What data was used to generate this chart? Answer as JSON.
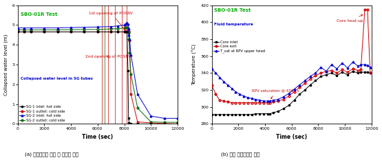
{
  "fig_width": 5.55,
  "fig_height": 2.33,
  "dpi": 100,
  "caption_a": "(a) 증기발생기 튜브 내 수위의 변화",
  "caption_b": "(b) 계통 유체온도의 변화",
  "plot_a": {
    "title": "SBO-01R Test",
    "title_color": "#00aa00",
    "xlabel": "Time (sec)",
    "ylabel": "Collapsed water level (m)",
    "xlim": [
      0,
      12000
    ],
    "ylim": [
      0,
      6
    ],
    "yticks": [
      0,
      1,
      2,
      3,
      4,
      5,
      6
    ],
    "xticks": [
      0,
      2000,
      4000,
      6000,
      8000,
      10000,
      12000
    ],
    "annot1_text": "1st opening of POSRV",
    "annot1_color": "#cc0000",
    "annot2_text": "2nd opening of POSRV",
    "annot2_color": "#cc0000",
    "legend_title": "Collapsed water level in SG tubes",
    "legend_title_color": "#0000cc",
    "sg1_inlet_label": "SG-1 inlet: hot side",
    "sg1_outlet_label": "SG-1 outlet: cold side",
    "sg2_inlet_label": "SG-2 inlet: hot side",
    "sg2_outlet_label": "SG-2 outlet: cold side",
    "sg1_inlet_color": "#000000",
    "sg1_outlet_color": "#cc0000",
    "sg2_inlet_color": "#0000cc",
    "sg2_outlet_color": "#006600",
    "posrv1_x": [
      6300,
      6800,
      7300,
      7800,
      8200
    ],
    "posrv2_x": [
      6550
    ],
    "posrv2_color": "#006600"
  },
  "plot_b": {
    "title": "SBO-01R Test",
    "title_color": "#00aa00",
    "xlabel": "Time (sec)",
    "ylabel": "Temperature (°C)",
    "xlim": [
      0,
      12000
    ],
    "ylim": [
      280,
      420
    ],
    "yticks": [
      280,
      300,
      320,
      340,
      360,
      380,
      400,
      420
    ],
    "xticks": [
      0,
      2000,
      4000,
      6000,
      8000,
      10000,
      12000
    ],
    "annot1_text": "Core heat-up",
    "annot1_color": "#cc0000",
    "annot2_text": "RPV saturation @ 4380 s",
    "annot2_color": "#cc0000",
    "legend_title": "Fluid temperature",
    "legend_title_color": "#0000cc",
    "core_inlet_label": "Core inlet",
    "core_exit_label": "Core exit",
    "tsat_label": "T_sat at RPV upper head",
    "core_inlet_color": "#000000",
    "core_exit_color": "#cc0000",
    "tsat_color": "#0000cc"
  }
}
